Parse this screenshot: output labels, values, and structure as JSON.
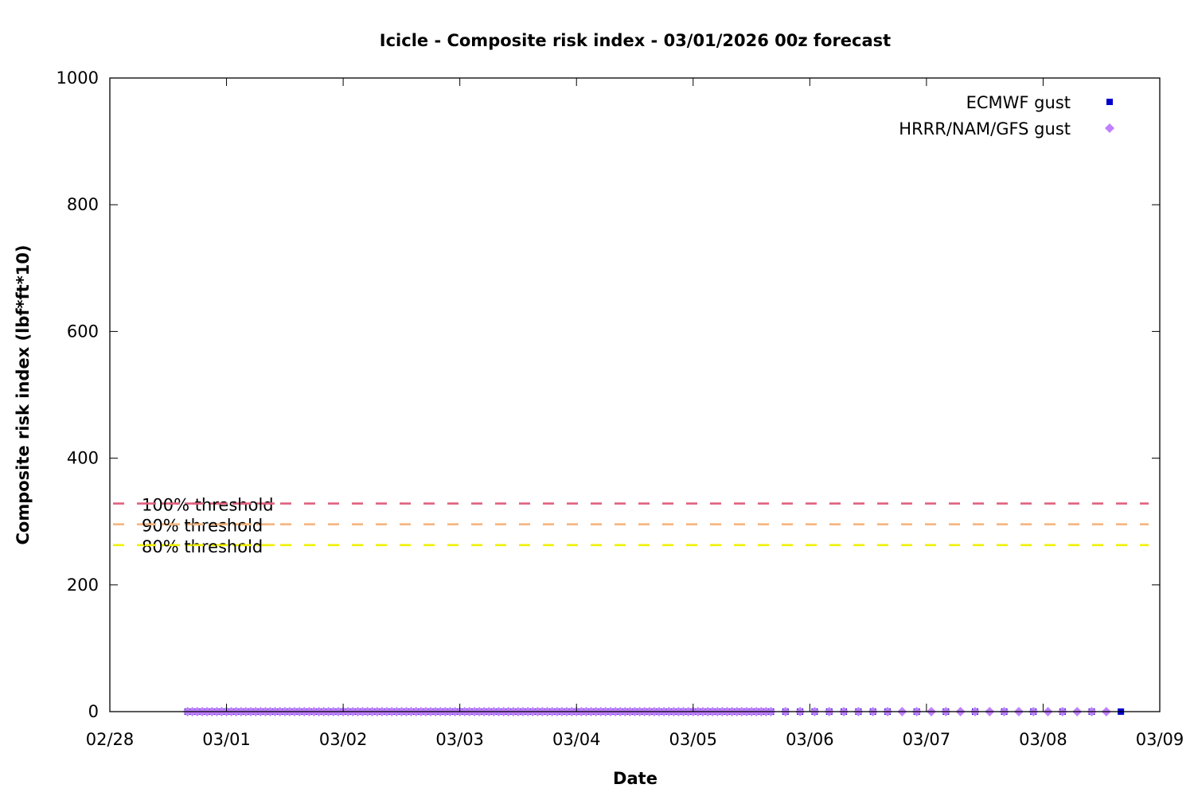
{
  "chart_data": {
    "type": "scatter",
    "title": "Icicle - Composite risk index - 03/01/2026 00z forecast",
    "xlabel": "Date",
    "ylabel": "Composite risk index (lbf*ft*10)",
    "xlim": [
      "2026-02-28 00:00",
      "2026-03-09 00:00"
    ],
    "ylim": [
      0,
      1000
    ],
    "x_ticks": [
      "02/28",
      "03/01",
      "03/02",
      "03/03",
      "03/04",
      "03/05",
      "03/06",
      "03/07",
      "03/08",
      "03/09"
    ],
    "y_ticks": [
      "0",
      "200",
      "400",
      "600",
      "800",
      "1000"
    ],
    "grid": false,
    "legend_position": "top-right",
    "series": [
      {
        "name": "ECMWF gust",
        "marker": "square",
        "color": "#0000cc",
        "segments": [
          {
            "start": "2026-02-28 16:00",
            "end": "2026-03-05 16:00",
            "step_hours": 1,
            "value": 0
          },
          {
            "start": "2026-03-05 19:00",
            "end": "2026-03-06 16:00",
            "step_hours": 3,
            "value": 0
          },
          {
            "start": "2026-03-06 22:00",
            "end": "2026-03-08 16:00",
            "step_hours": 6,
            "value": 0
          }
        ]
      },
      {
        "name": "HRRR/NAM/GFS gust",
        "marker": "diamond",
        "color": "#c080ff",
        "segments": [
          {
            "start": "2026-02-28 16:00",
            "end": "2026-03-05 16:00",
            "step_hours": 1,
            "value": 0
          },
          {
            "start": "2026-03-05 19:00",
            "end": "2026-03-08 13:00",
            "step_hours": 3,
            "value": 0
          }
        ]
      }
    ],
    "thresholds": [
      {
        "label": "100% threshold",
        "value": 328.5,
        "color": "#e0607e"
      },
      {
        "label": "90% threshold",
        "value": 295.6,
        "color": "#f5b57e"
      },
      {
        "label": "80% threshold",
        "value": 262.8,
        "color": "#f0f000"
      }
    ]
  }
}
